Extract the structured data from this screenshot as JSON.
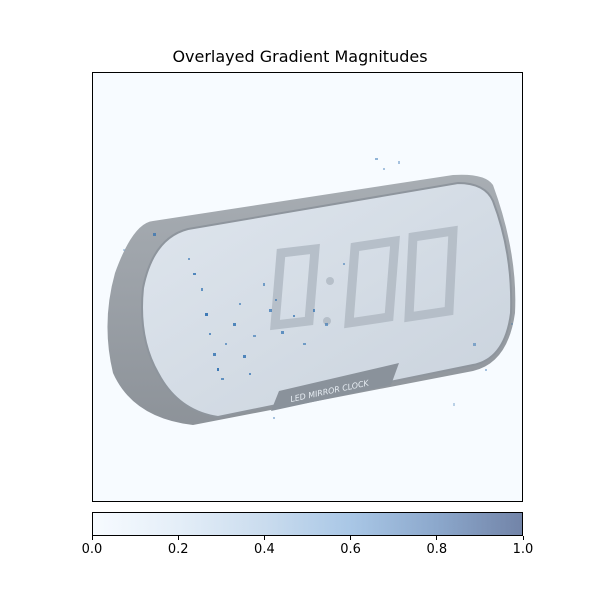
{
  "figure": {
    "title": "Overlayed Gradient Magnitudes"
  },
  "image": {
    "subject": "clock-photo",
    "lcd_time_text": "0:00",
    "label_text": "LED MIRROR CLOCK"
  },
  "colorbar": {
    "ticks": [
      "0.0",
      "0.2",
      "0.4",
      "0.6",
      "0.8",
      "1.0"
    ],
    "range": [
      0.0,
      1.0
    ],
    "colors": [
      "#f7fbff",
      "#cadcee",
      "#7284a8"
    ]
  }
}
